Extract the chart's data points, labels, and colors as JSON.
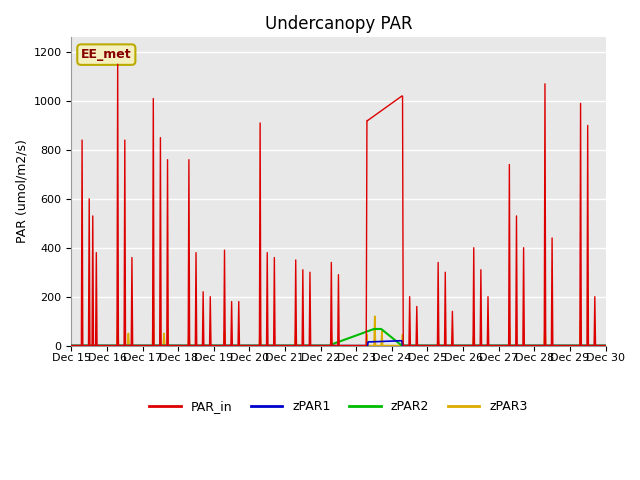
{
  "title": "Undercanopy PAR",
  "ylabel": "PAR (umol/m2/s)",
  "xlabel": "",
  "annotation": "EE_met",
  "ylim": [
    0,
    1260
  ],
  "yticks": [
    0,
    200,
    400,
    600,
    800,
    1000,
    1200
  ],
  "plot_bg_color": "#e8e8e8",
  "fig_bg_color": "#ffffff",
  "grid_color": "#ffffff",
  "legend_labels": [
    "PAR_in",
    "zPAR1",
    "zPAR2",
    "zPAR3"
  ],
  "legend_colors": [
    "#dd0000",
    "#0000cc",
    "#00bb00",
    "#ddaa00"
  ],
  "title_fontsize": 12,
  "label_fontsize": 9,
  "tick_fontsize": 8,
  "x_start": 15,
  "x_end": 30,
  "xtick_days": [
    15,
    16,
    17,
    18,
    19,
    20,
    21,
    22,
    23,
    24,
    25,
    26,
    27,
    28,
    29,
    30
  ],
  "PAR_in_data": [
    [
      15.0,
      0
    ],
    [
      15.28,
      0
    ],
    [
      15.3,
      840
    ],
    [
      15.32,
      0
    ],
    [
      15.48,
      0
    ],
    [
      15.5,
      600
    ],
    [
      15.52,
      0
    ],
    [
      15.58,
      0
    ],
    [
      15.6,
      530
    ],
    [
      15.62,
      0
    ],
    [
      15.68,
      0
    ],
    [
      15.7,
      380
    ],
    [
      15.72,
      0
    ],
    [
      16.0,
      0
    ],
    [
      16.28,
      0
    ],
    [
      16.3,
      1150
    ],
    [
      16.32,
      0
    ],
    [
      16.48,
      0
    ],
    [
      16.5,
      840
    ],
    [
      16.52,
      0
    ],
    [
      16.68,
      0
    ],
    [
      16.7,
      360
    ],
    [
      16.72,
      0
    ],
    [
      17.0,
      0
    ],
    [
      17.28,
      0
    ],
    [
      17.3,
      1010
    ],
    [
      17.32,
      0
    ],
    [
      17.48,
      0
    ],
    [
      17.5,
      850
    ],
    [
      17.52,
      0
    ],
    [
      17.68,
      0
    ],
    [
      17.7,
      760
    ],
    [
      17.72,
      0
    ],
    [
      18.0,
      0
    ],
    [
      18.28,
      0
    ],
    [
      18.3,
      760
    ],
    [
      18.32,
      0
    ],
    [
      18.48,
      0
    ],
    [
      18.5,
      380
    ],
    [
      18.52,
      0
    ],
    [
      18.68,
      0
    ],
    [
      18.7,
      220
    ],
    [
      18.72,
      0
    ],
    [
      18.88,
      0
    ],
    [
      18.9,
      200
    ],
    [
      18.92,
      0
    ],
    [
      19.0,
      0
    ],
    [
      19.28,
      0
    ],
    [
      19.3,
      390
    ],
    [
      19.32,
      0
    ],
    [
      19.48,
      0
    ],
    [
      19.5,
      180
    ],
    [
      19.52,
      0
    ],
    [
      19.68,
      0
    ],
    [
      19.7,
      180
    ],
    [
      19.72,
      0
    ],
    [
      20.0,
      0
    ],
    [
      20.28,
      0
    ],
    [
      20.3,
      910
    ],
    [
      20.32,
      0
    ],
    [
      20.48,
      0
    ],
    [
      20.5,
      380
    ],
    [
      20.52,
      0
    ],
    [
      20.68,
      0
    ],
    [
      20.7,
      360
    ],
    [
      20.72,
      0
    ],
    [
      21.0,
      0
    ],
    [
      21.28,
      0
    ],
    [
      21.3,
      350
    ],
    [
      21.32,
      0
    ],
    [
      21.48,
      0
    ],
    [
      21.5,
      310
    ],
    [
      21.52,
      0
    ],
    [
      21.68,
      0
    ],
    [
      21.7,
      300
    ],
    [
      21.72,
      0
    ],
    [
      22.0,
      0
    ],
    [
      22.28,
      0
    ],
    [
      22.3,
      340
    ],
    [
      22.32,
      0
    ],
    [
      22.48,
      0
    ],
    [
      22.5,
      290
    ],
    [
      22.52,
      0
    ],
    [
      23.0,
      0
    ],
    [
      23.28,
      0
    ],
    [
      23.3,
      920
    ],
    [
      23.32,
      920
    ],
    [
      24.28,
      1020
    ],
    [
      24.3,
      1020
    ],
    [
      24.32,
      0
    ],
    [
      24.48,
      0
    ],
    [
      24.5,
      200
    ],
    [
      24.52,
      0
    ],
    [
      24.68,
      0
    ],
    [
      24.7,
      160
    ],
    [
      24.72,
      0
    ],
    [
      25.0,
      0
    ],
    [
      25.28,
      0
    ],
    [
      25.3,
      340
    ],
    [
      25.32,
      0
    ],
    [
      25.48,
      0
    ],
    [
      25.5,
      300
    ],
    [
      25.52,
      0
    ],
    [
      25.68,
      0
    ],
    [
      25.7,
      140
    ],
    [
      25.72,
      0
    ],
    [
      26.0,
      0
    ],
    [
      26.28,
      0
    ],
    [
      26.3,
      400
    ],
    [
      26.32,
      0
    ],
    [
      26.48,
      0
    ],
    [
      26.5,
      310
    ],
    [
      26.52,
      0
    ],
    [
      26.68,
      0
    ],
    [
      26.7,
      200
    ],
    [
      26.72,
      0
    ],
    [
      27.0,
      0
    ],
    [
      27.28,
      0
    ],
    [
      27.3,
      740
    ],
    [
      27.32,
      0
    ],
    [
      27.48,
      0
    ],
    [
      27.5,
      530
    ],
    [
      27.52,
      0
    ],
    [
      27.68,
      0
    ],
    [
      27.7,
      400
    ],
    [
      27.72,
      0
    ],
    [
      28.0,
      0
    ],
    [
      28.28,
      0
    ],
    [
      28.3,
      1070
    ],
    [
      28.32,
      0
    ],
    [
      28.48,
      0
    ],
    [
      28.5,
      440
    ],
    [
      28.52,
      0
    ],
    [
      29.0,
      0
    ],
    [
      29.28,
      0
    ],
    [
      29.3,
      990
    ],
    [
      29.32,
      0
    ],
    [
      29.48,
      0
    ],
    [
      29.5,
      900
    ],
    [
      29.52,
      0
    ],
    [
      29.68,
      0
    ],
    [
      29.7,
      200
    ],
    [
      29.72,
      0
    ],
    [
      30.0,
      0
    ]
  ],
  "zPAR1_data": [
    [
      15.0,
      0
    ],
    [
      22.0,
      0
    ],
    [
      22.3,
      0
    ],
    [
      23.32,
      0
    ],
    [
      23.33,
      15
    ],
    [
      24.28,
      20
    ],
    [
      24.3,
      0
    ],
    [
      30.0,
      0
    ]
  ],
  "zPAR2_data": [
    [
      15.0,
      0
    ],
    [
      22.3,
      0
    ],
    [
      22.31,
      5
    ],
    [
      23.5,
      68
    ],
    [
      23.7,
      68
    ],
    [
      24.28,
      0
    ],
    [
      30.0,
      0
    ]
  ],
  "zPAR3_data": [
    [
      15.0,
      0
    ],
    [
      16.28,
      0
    ],
    [
      16.3,
      110
    ],
    [
      16.32,
      0
    ],
    [
      16.58,
      0
    ],
    [
      16.6,
      50
    ],
    [
      16.62,
      0
    ],
    [
      17.28,
      0
    ],
    [
      17.3,
      195
    ],
    [
      17.32,
      0
    ],
    [
      17.58,
      0
    ],
    [
      17.6,
      50
    ],
    [
      17.62,
      0
    ],
    [
      18.28,
      0
    ],
    [
      18.3,
      50
    ],
    [
      18.32,
      0
    ],
    [
      19.28,
      0
    ],
    [
      19.3,
      55
    ],
    [
      19.32,
      0
    ],
    [
      20.28,
      0
    ],
    [
      20.3,
      55
    ],
    [
      20.32,
      0
    ],
    [
      21.28,
      0
    ],
    [
      21.3,
      55
    ],
    [
      21.32,
      0
    ],
    [
      22.28,
      0
    ],
    [
      22.3,
      45
    ],
    [
      22.32,
      0
    ],
    [
      23.28,
      0
    ],
    [
      23.3,
      45
    ],
    [
      23.32,
      0
    ],
    [
      23.5,
      0
    ],
    [
      23.52,
      120
    ],
    [
      23.54,
      0
    ],
    [
      23.7,
      0
    ],
    [
      23.72,
      60
    ],
    [
      23.74,
      0
    ],
    [
      24.28,
      0
    ],
    [
      24.3,
      45
    ],
    [
      24.32,
      0
    ],
    [
      25.28,
      0
    ],
    [
      25.3,
      25
    ],
    [
      25.32,
      0
    ],
    [
      26.28,
      0
    ],
    [
      26.3,
      45
    ],
    [
      26.32,
      0
    ],
    [
      27.28,
      0
    ],
    [
      27.3,
      80
    ],
    [
      27.32,
      0
    ],
    [
      28.28,
      0
    ],
    [
      28.3,
      80
    ],
    [
      28.32,
      0
    ],
    [
      29.28,
      0
    ],
    [
      29.3,
      100
    ],
    [
      29.32,
      0
    ],
    [
      30.0,
      0
    ]
  ]
}
